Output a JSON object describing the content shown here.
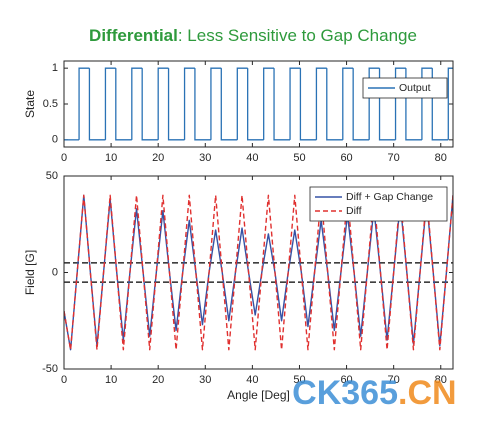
{
  "title": {
    "bold": "Differential",
    "rest": ": Less Sensitive to Gap Change"
  },
  "watermark": [
    "CK365",
    ".CN"
  ],
  "chart_data": [
    {
      "type": "line",
      "step": "post",
      "ylabel": "State",
      "xlim": [
        0,
        82.6
      ],
      "xticks": [
        0,
        10,
        20,
        30,
        40,
        50,
        60,
        70,
        80
      ],
      "ylim": [
        -0.1,
        1.1
      ],
      "yticks": [
        0,
        0.5,
        1
      ],
      "legend": "upper right",
      "x": [
        0,
        3.2,
        5.4,
        8.8,
        11,
        14.4,
        16.6,
        20,
        22.2,
        25.6,
        27.8,
        31.2,
        33.4,
        36.8,
        39,
        42.4,
        44.6,
        48,
        50.2,
        53.6,
        55.8,
        59.2,
        61.4,
        64.8,
        67,
        70.4,
        72.6,
        76,
        78.2,
        81.6
      ],
      "series": [
        {
          "name": "Output",
          "color": "#2a72b5",
          "dash": "solid",
          "values": [
            0,
            1,
            0,
            1,
            0,
            1,
            0,
            1,
            0,
            1,
            0,
            1,
            0,
            1,
            0,
            1,
            0,
            1,
            0,
            1,
            0,
            1,
            0,
            1,
            0,
            1,
            0,
            1,
            0,
            1
          ]
        }
      ]
    },
    {
      "type": "line",
      "ylabel": "Field [G]",
      "xlabel": "Angle [Deg]",
      "xlim": [
        0,
        82.6
      ],
      "xticks": [
        0,
        10,
        20,
        30,
        40,
        50,
        60,
        70,
        80
      ],
      "ylim": [
        -50,
        50
      ],
      "yticks": [
        -50,
        0,
        50
      ],
      "legend": "upper right",
      "thresholds": [
        5,
        -5
      ],
      "x": [
        0,
        1.4,
        2.8,
        4.2,
        5.6,
        7,
        8.4,
        9.8,
        11.2,
        12.6,
        14,
        15.4,
        16.8,
        18.2,
        19.6,
        21,
        22.4,
        23.8,
        25.2,
        26.6,
        28,
        29.4,
        30.8,
        32.2,
        33.6,
        35,
        36.4,
        37.8,
        39.2,
        40.6,
        42,
        43.4,
        44.8,
        46.2,
        47.6,
        49,
        50.4,
        51.8,
        53.2,
        54.6,
        56,
        57.4,
        58.8,
        60.2,
        61.6,
        63,
        64.4,
        65.8,
        67.2,
        68.6,
        70,
        71.4,
        72.8,
        74.2,
        75.6,
        77,
        78.4,
        79.8,
        81.2,
        82.6
      ],
      "series": [
        {
          "name": "Diff + Gap Change",
          "color": "#3552a5",
          "dash": "solid",
          "values": [
            -20,
            -40,
            0,
            40,
            0,
            -38,
            0,
            38,
            0,
            -35,
            0,
            33,
            0,
            -33,
            0,
            32,
            0,
            -30,
            0,
            27,
            0,
            -27,
            0,
            22,
            0,
            -25,
            0,
            23,
            0,
            -22,
            0,
            20,
            0,
            -25,
            0,
            22,
            0,
            -28,
            0,
            27,
            0,
            -30,
            0,
            30,
            0,
            -33,
            0,
            33,
            0,
            -35,
            0,
            36,
            0,
            -37,
            0,
            37,
            0,
            -38,
            0,
            40
          ]
        },
        {
          "name": "Diff",
          "color": "#e0302f",
          "dash": "dashed",
          "values": [
            -20,
            -40,
            0,
            40,
            0,
            -40,
            0,
            40,
            0,
            -40,
            0,
            40,
            0,
            -40,
            0,
            40,
            0,
            -40,
            0,
            40,
            0,
            -40,
            0,
            40,
            0,
            -40,
            0,
            40,
            0,
            -40,
            0,
            40,
            0,
            -40,
            0,
            40,
            0,
            -40,
            0,
            40,
            0,
            -40,
            0,
            40,
            0,
            -40,
            0,
            40,
            0,
            -40,
            0,
            40,
            0,
            -40,
            0,
            40,
            0,
            -40,
            0,
            40
          ]
        }
      ]
    }
  ]
}
